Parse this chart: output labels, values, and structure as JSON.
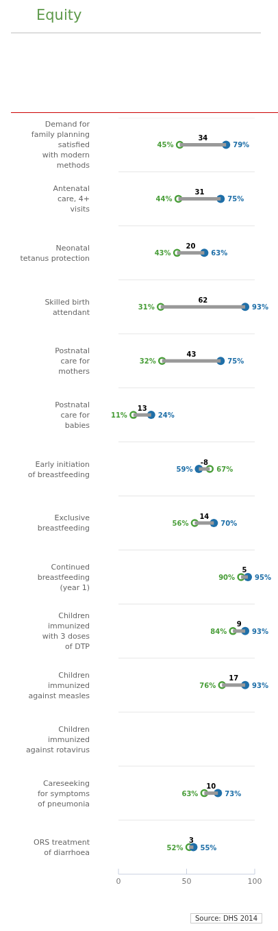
{
  "chart_data": {
    "type": "bar",
    "title": "Equity",
    "orientation": "horizontal",
    "categories": [
      "Demand for\nfamily planning\nsatisfied\nwith modern\nmethods",
      "Antenatal\ncare, 4+\nvisits",
      "Neonatal\ntetanus protection",
      "Skilled birth\nattendant",
      "Postnatal\ncare for\nmothers",
      "Postnatal\ncare for\nbabies",
      "Early initiation\nof breastfeeding",
      "Exclusive\nbreastfeeding",
      "Continued\nbreastfeeding\n(year 1)",
      "Children\nimmunized\nwith 3 doses\nof DTP",
      "Children\nimmunized\nagainst measles",
      "Children\nimmunized\nagainst rotavirus",
      "Careseeking\nfor symptoms\nof pneumonia",
      "ORS treatment\nof diarrhoea"
    ],
    "series": [
      {
        "color": "#999999",
        "base": [
          45,
          44,
          43,
          31,
          32,
          11,
          67,
          56,
          90,
          84,
          76,
          null,
          63,
          52
        ],
        "values": [
          34,
          31,
          20,
          62,
          43,
          13,
          -8,
          14,
          5,
          9,
          17,
          null,
          10,
          3
        ],
        "value_labels": [
          "34",
          "31",
          "20",
          "62",
          "43",
          "13",
          "-8",
          "14",
          "5",
          "9",
          "17",
          null,
          "10",
          "3"
        ]
      },
      {
        "type": "scatter",
        "color": "#4a9e3a",
        "values": [
          45,
          44,
          43,
          31,
          32,
          11,
          67,
          56,
          90,
          84,
          76,
          null,
          63,
          52
        ],
        "value_labels": [
          "45%",
          "44%",
          "43%",
          "31%",
          "32%",
          "11%",
          "67%",
          "56%",
          "90%",
          "84%",
          "76%",
          null,
          "63%",
          "52%"
        ]
      },
      {
        "type": "scatter",
        "color": "#1f6fa8",
        "values": [
          79,
          75,
          63,
          93,
          75,
          24,
          59,
          70,
          95,
          93,
          93,
          null,
          73,
          55
        ],
        "value_labels": [
          "79%",
          "75%",
          "63%",
          "93%",
          "75%",
          "24%",
          "59%",
          "70%",
          "95%",
          "93%",
          "93%",
          null,
          "73%",
          "55%"
        ]
      }
    ],
    "xlim": [
      0,
      100
    ],
    "xticks": [
      0,
      50,
      100
    ],
    "grid": "y",
    "marker": "circle",
    "annotations": [
      "Source: DHS 2014"
    ]
  }
}
